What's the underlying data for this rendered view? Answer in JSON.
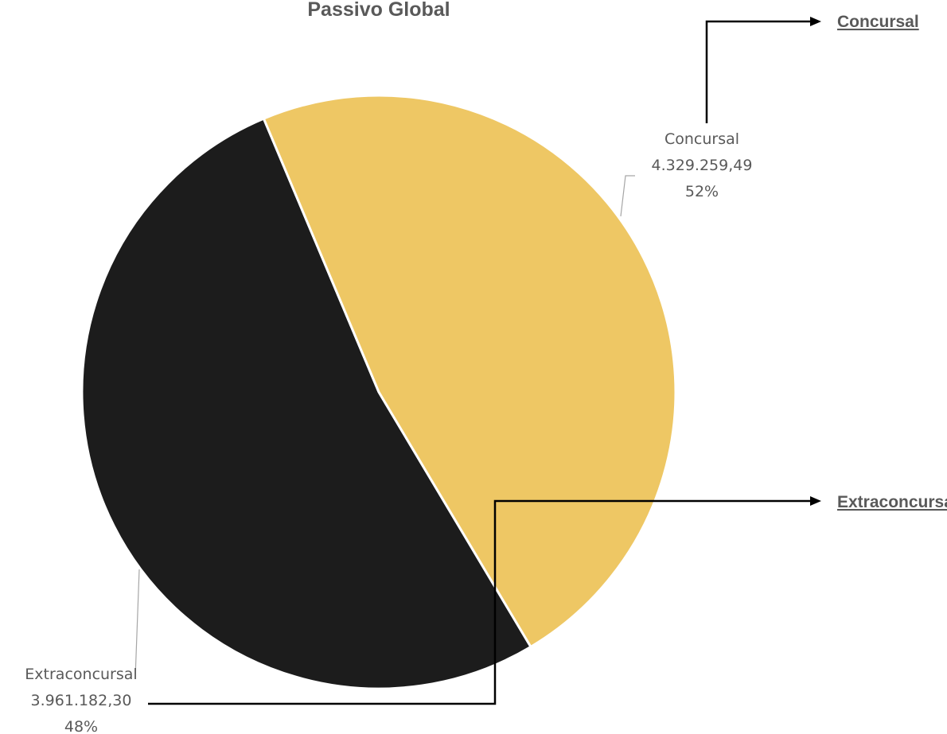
{
  "chart_data": {
    "type": "pie",
    "title": "Passivo Global",
    "categories": [
      "Concursal",
      "Extraconcursal"
    ],
    "values": [
      4329259.49,
      3961182.3
    ],
    "value_labels": [
      "4.329.259,49",
      "3.961.182,30"
    ],
    "percent_labels": [
      "52%",
      "48%"
    ],
    "colors": [
      "#1c1c1c",
      "#eec764"
    ],
    "legend": [
      "Concursal",
      "Extraconcursal"
    ],
    "legend_position": "right"
  }
}
